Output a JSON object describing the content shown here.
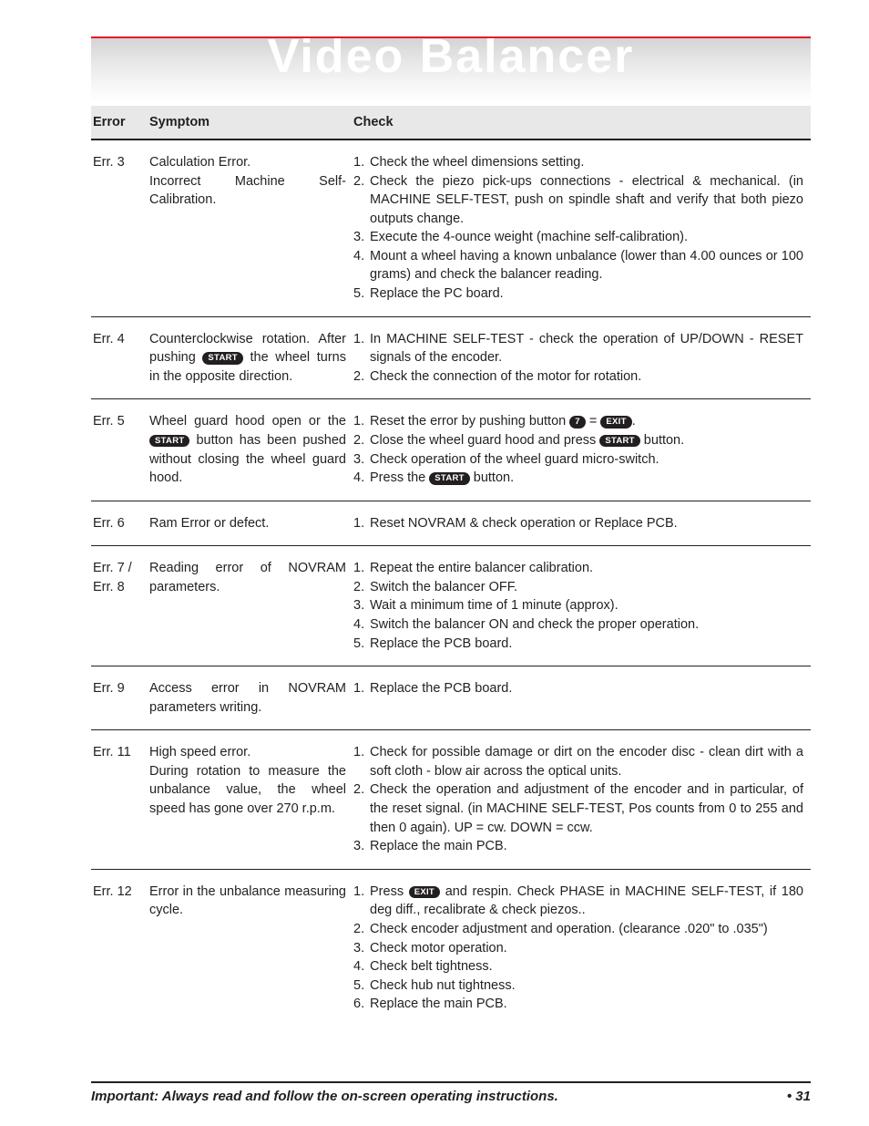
{
  "banner": {
    "title": "Video Balancer"
  },
  "buttons": {
    "start": "START",
    "exit": "EXIT",
    "seven": "7"
  },
  "table": {
    "headers": {
      "error": "Error",
      "symptom": "Symptom",
      "check": "Check"
    },
    "rows": [
      {
        "error": "Err. 3",
        "symptom_parts": [
          {
            "t": "Calculation Error.\nIncorrect Machine Self-Calibration."
          }
        ],
        "checks": [
          {
            "n": "1.",
            "parts": [
              {
                "t": "Check the wheel dimensions setting."
              }
            ]
          },
          {
            "n": "2.",
            "parts": [
              {
                "t": "Check the piezo pick-ups connections - electrical & mechanical. (in MACHINE SELF-TEST, push on spindle shaft and verify that both piezo outputs change."
              }
            ]
          },
          {
            "n": "3.",
            "parts": [
              {
                "t": "Execute the 4-ounce weight (machine self-calibration)."
              }
            ]
          },
          {
            "n": "4.",
            "parts": [
              {
                "t": "Mount a wheel having a known unbalance (lower than 4.00 ounces or 100 grams) and check the balancer reading."
              }
            ]
          },
          {
            "n": "5.",
            "parts": [
              {
                "t": "Replace the PC board."
              }
            ]
          }
        ]
      },
      {
        "error": "Err. 4",
        "symptom_parts": [
          {
            "t": "Counterclockwise rotation. After pushing "
          },
          {
            "pill": "start"
          },
          {
            "t": " the wheel turns in the opposite direction."
          }
        ],
        "checks": [
          {
            "n": "1.",
            "parts": [
              {
                "t": "In MACHINE SELF-TEST - check the operation of UP/DOWN - RESET signals of the encoder."
              }
            ]
          },
          {
            "n": "2.",
            "parts": [
              {
                "t": "Check the connection of the motor for rotation."
              }
            ]
          }
        ]
      },
      {
        "error": "Err. 5",
        "symptom_parts": [
          {
            "t": "Wheel guard hood open or the "
          },
          {
            "pill": "start"
          },
          {
            "t": " button has been pushed without closing the wheel guard hood."
          }
        ],
        "checks": [
          {
            "n": "1.",
            "parts": [
              {
                "t": "Reset the error by pushing button "
              },
              {
                "pill": "seven"
              },
              {
                "t": " = "
              },
              {
                "pill": "exit"
              },
              {
                "t": "."
              }
            ]
          },
          {
            "n": "2.",
            "parts": [
              {
                "t": "Close the wheel guard hood and press "
              },
              {
                "pill": "start"
              },
              {
                "t": " button."
              }
            ]
          },
          {
            "n": "3.",
            "parts": [
              {
                "t": "Check operation of the wheel guard micro-switch."
              }
            ]
          },
          {
            "n": "4.",
            "parts": [
              {
                "t": "Press the "
              },
              {
                "pill": "start"
              },
              {
                "t": " button."
              }
            ]
          }
        ]
      },
      {
        "error": "Err. 6",
        "symptom_parts": [
          {
            "t": "Ram Error or defect."
          }
        ],
        "checks": [
          {
            "n": "1.",
            "parts": [
              {
                "t": "Reset NOVRAM & check operation or Replace PCB."
              }
            ]
          }
        ]
      },
      {
        "error": "Err. 7 /\nErr. 8",
        "symptom_parts": [
          {
            "t": "Reading error of NOVRAM parameters."
          }
        ],
        "checks": [
          {
            "n": "1.",
            "parts": [
              {
                "t": "Repeat the entire balancer calibration."
              }
            ]
          },
          {
            "n": "2.",
            "parts": [
              {
                "t": "Switch the balancer OFF."
              }
            ]
          },
          {
            "n": "3.",
            "parts": [
              {
                "t": "Wait a minimum time of 1 minute (approx)."
              }
            ]
          },
          {
            "n": "4.",
            "parts": [
              {
                "t": "Switch the balancer ON and check the proper operation."
              }
            ]
          },
          {
            "n": "5.",
            "parts": [
              {
                "t": "Replace the PCB board."
              }
            ]
          }
        ]
      },
      {
        "error": "Err. 9",
        "symptom_parts": [
          {
            "t": "Access error in NOVRAM parameters writing."
          }
        ],
        "checks": [
          {
            "n": "1.",
            "parts": [
              {
                "t": "Replace the PCB board."
              }
            ]
          }
        ]
      },
      {
        "error": "Err. 11",
        "symptom_parts": [
          {
            "t": "High speed error.\nDuring rotation to measure the unbalance value, the wheel speed has gone over 270 r.p.m."
          }
        ],
        "checks": [
          {
            "n": "1.",
            "parts": [
              {
                "t": "Check for possible damage or dirt on the encoder disc - clean dirt with a soft cloth - blow air across the optical units."
              }
            ]
          },
          {
            "n": "2.",
            "parts": [
              {
                "t": "Check the operation and adjustment of the encoder and in particular, of the reset signal. (in MACHINE SELF-TEST, Pos counts from 0 to 255 and then 0 again). UP = cw. DOWN = ccw."
              }
            ]
          },
          {
            "n": "3.",
            "parts": [
              {
                "t": "Replace the main PCB."
              }
            ]
          }
        ]
      },
      {
        "error": "Err. 12",
        "symptom_parts": [
          {
            "t": "Error in the unbalance measuring cycle."
          }
        ],
        "checks": [
          {
            "n": "1.",
            "parts": [
              {
                "t": "Press "
              },
              {
                "pill": "exit"
              },
              {
                "t": " and respin. Check PHASE in MACHINE SELF-TEST, if 180 deg diff., recalibrate & check piezos.."
              }
            ]
          },
          {
            "n": "2.",
            "parts": [
              {
                "t": "Check encoder adjustment and operation. (clearance .020\" to .035\")"
              }
            ]
          },
          {
            "n": "3.",
            "parts": [
              {
                "t": "Check motor operation."
              }
            ]
          },
          {
            "n": "4.",
            "parts": [
              {
                "t": "Check belt tightness."
              }
            ]
          },
          {
            "n": "5.",
            "parts": [
              {
                "t": "Check hub nut tightness."
              }
            ]
          },
          {
            "n": "6.",
            "parts": [
              {
                "t": "Replace the main PCB."
              }
            ]
          }
        ]
      }
    ]
  },
  "footer": {
    "note": "Important: Always read and follow the on-screen operating instructions.",
    "page": "• 31"
  }
}
